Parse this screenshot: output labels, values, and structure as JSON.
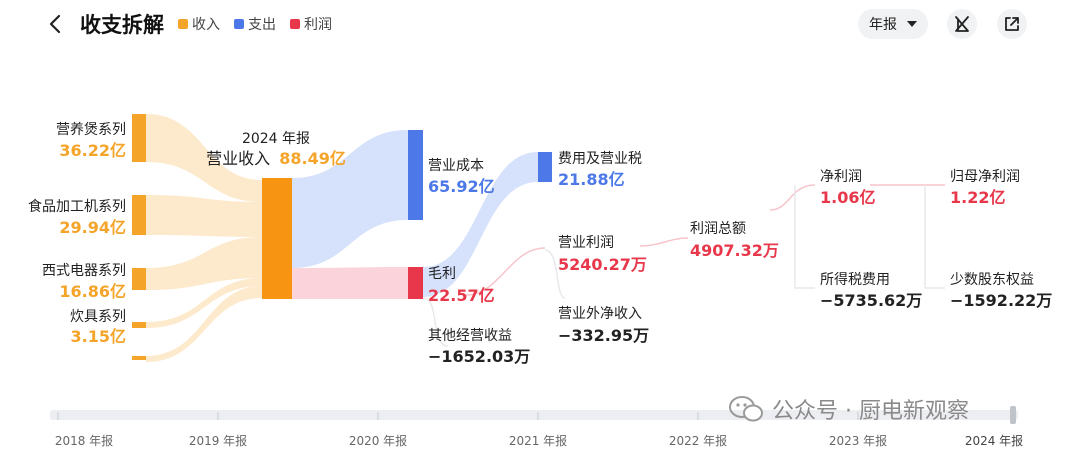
{
  "header": {
    "title": "收支拆解",
    "legend": [
      {
        "label": "收入",
        "color": "#f5a42a"
      },
      {
        "label": "支出",
        "color": "#4c78e8"
      },
      {
        "label": "利润",
        "color": "#e8374a"
      }
    ],
    "period": "年报"
  },
  "chart_data": {
    "type": "sankey",
    "year_label": "2024 年报",
    "root": {
      "name": "营业收入",
      "value": "88.49亿"
    },
    "revenue_sources": [
      {
        "name": "营养煲系列",
        "value": "36.22亿"
      },
      {
        "name": "食品加工机系列",
        "value": "29.94亿"
      },
      {
        "name": "西式电器系列",
        "value": "16.86亿"
      },
      {
        "name": "炊具系列",
        "value": "3.15亿"
      }
    ],
    "nodes": {
      "cost": {
        "name": "营业成本",
        "value": "65.92亿"
      },
      "gross_profit": {
        "name": "毛利",
        "value": "22.57亿"
      },
      "other_income": {
        "name": "其他经营收益",
        "value": "−1652.03万"
      },
      "expenses_tax": {
        "name": "费用及营业税",
        "value": "21.88亿"
      },
      "op_profit": {
        "name": "营业利润",
        "value": "5240.27万"
      },
      "non_op": {
        "name": "营业外净收入",
        "value": "−332.95万"
      },
      "total_profit": {
        "name": "利润总额",
        "value": "4907.32万"
      },
      "net_profit": {
        "name": "净利润",
        "value": "1.06亿"
      },
      "income_tax": {
        "name": "所得税费用",
        "value": "−5735.62万"
      },
      "parent_net": {
        "name": "归母净利润",
        "value": "1.22亿"
      },
      "minority": {
        "name": "少数股东权益",
        "value": "−1592.22万"
      }
    },
    "values_numeric_yi": {
      "sources": [
        36.22,
        29.94,
        16.86,
        3.15
      ],
      "revenue": 88.49,
      "cost": 65.92,
      "gross_profit": 22.57,
      "expenses_tax": 21.88
    }
  },
  "timeline": {
    "years": [
      "2018 年报",
      "2019 年报",
      "2020 年报",
      "2021 年报",
      "2022 年报",
      "2023 年报",
      "2024 年报"
    ],
    "selected_index": 6
  },
  "watermark": {
    "text": "公众号 · 厨电新观察"
  }
}
